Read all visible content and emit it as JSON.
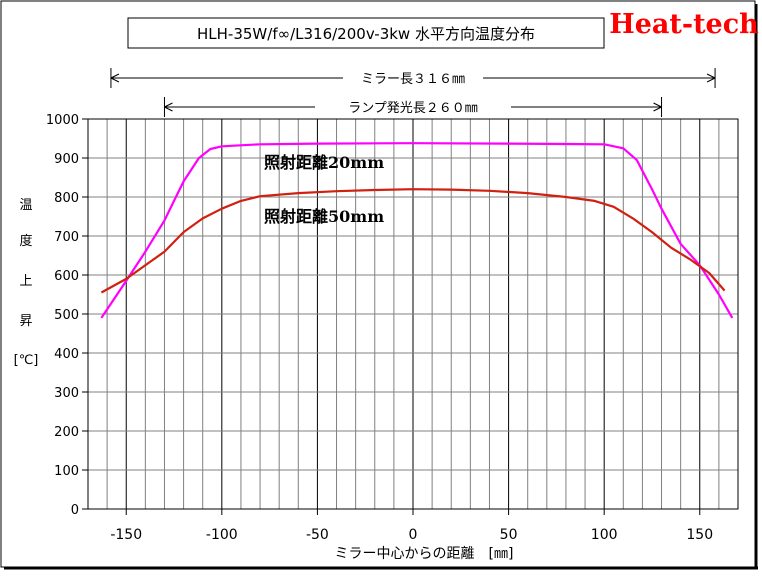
{
  "brand": "Heat-tech",
  "colors": {
    "brand_red": "#ff0000",
    "series_20mm": "#ff00ff",
    "series_50mm": "#d02010",
    "grid": "#808080"
  },
  "chart_data": {
    "type": "line",
    "title": "HLH-35W/f∞/L316/200v-3kw 水平方向温度分布",
    "xlabel": "ミラー中心からの距離　[㎜]",
    "ylabel": [
      "温",
      "度",
      "上",
      "昇",
      "[℃]"
    ],
    "xlim": [
      -170,
      170
    ],
    "ylim": [
      0,
      1000
    ],
    "x_ticks": [
      -150,
      -100,
      -50,
      0,
      50,
      100,
      150
    ],
    "x_tick_labels": [
      "-150",
      "-100",
      "-50",
      "0",
      "50",
      "100",
      "150"
    ],
    "y_ticks": [
      0,
      100,
      200,
      300,
      400,
      500,
      600,
      700,
      800,
      900,
      1000
    ],
    "y_tick_labels": [
      "0",
      "100",
      "200",
      "300",
      "400",
      "500",
      "600",
      "700",
      "800",
      "900",
      "1000"
    ],
    "grid": true,
    "dimensions": [
      {
        "label": "ミラー長３１６㎜",
        "from": -158,
        "to": 158
      },
      {
        "label": "ランプ発光長２６０㎜",
        "from": -130,
        "to": 130
      }
    ],
    "series": [
      {
        "name": "照射距離20mm",
        "color": "#ff00ff",
        "points": [
          [
            -163,
            490
          ],
          [
            -150,
            585
          ],
          [
            -140,
            660
          ],
          [
            -130,
            740
          ],
          [
            -125,
            790
          ],
          [
            -120,
            840
          ],
          [
            -112,
            900
          ],
          [
            -106,
            923
          ],
          [
            -100,
            930
          ],
          [
            -80,
            935
          ],
          [
            -50,
            937
          ],
          [
            0,
            938
          ],
          [
            50,
            937
          ],
          [
            80,
            936
          ],
          [
            100,
            935
          ],
          [
            110,
            925
          ],
          [
            117,
            895
          ],
          [
            125,
            820
          ],
          [
            130,
            770
          ],
          [
            140,
            680
          ],
          [
            150,
            625
          ],
          [
            160,
            550
          ],
          [
            167,
            490
          ]
        ]
      },
      {
        "name": "照射距離50mm",
        "color": "#d02010",
        "points": [
          [
            -163,
            555
          ],
          [
            -150,
            590
          ],
          [
            -130,
            660
          ],
          [
            -120,
            710
          ],
          [
            -110,
            745
          ],
          [
            -100,
            770
          ],
          [
            -90,
            790
          ],
          [
            -80,
            802
          ],
          [
            -60,
            810
          ],
          [
            -40,
            815
          ],
          [
            -20,
            818
          ],
          [
            0,
            820
          ],
          [
            20,
            819
          ],
          [
            40,
            816
          ],
          [
            60,
            810
          ],
          [
            80,
            800
          ],
          [
            95,
            790
          ],
          [
            105,
            775
          ],
          [
            115,
            745
          ],
          [
            125,
            710
          ],
          [
            135,
            670
          ],
          [
            145,
            640
          ],
          [
            155,
            605
          ],
          [
            163,
            560
          ]
        ]
      }
    ],
    "annotations": [
      {
        "text": "照射距離20mm",
        "series": 0
      },
      {
        "text": "照射距離50mm",
        "series": 1
      }
    ]
  }
}
